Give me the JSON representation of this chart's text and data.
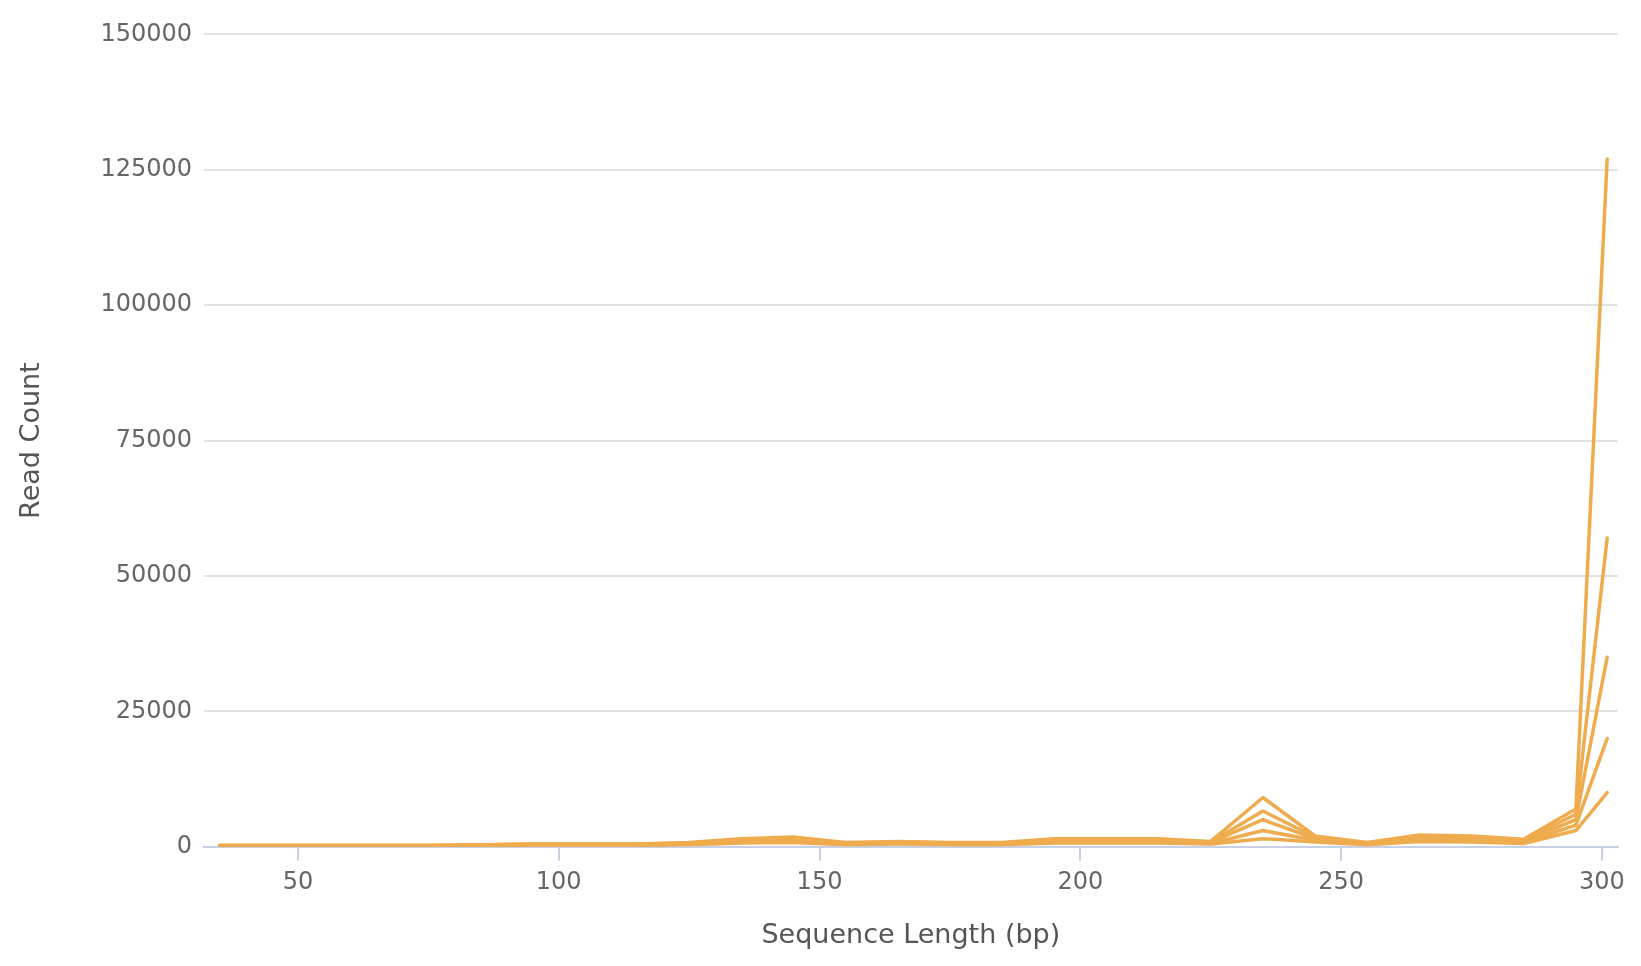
{
  "chart_data": {
    "type": "line",
    "xlabel": "Sequence Length (bp)",
    "ylabel": "Read Count",
    "x": [
      35,
      45,
      55,
      65,
      75,
      85,
      95,
      105,
      115,
      125,
      135,
      145,
      155,
      165,
      175,
      185,
      195,
      205,
      215,
      225,
      235,
      245,
      255,
      265,
      275,
      285,
      295,
      301
    ],
    "series": [
      {
        "color": "#efac4e",
        "values": [
          300,
          300,
          300,
          300,
          300,
          400,
          500,
          500,
          500,
          800,
          1500,
          1800,
          800,
          1000,
          800,
          800,
          1500,
          1500,
          1500,
          1000,
          9100,
          2000,
          800,
          2200,
          2000,
          1400,
          7000,
          127000
        ]
      },
      {
        "color": "#efac4e",
        "values": [
          250,
          250,
          250,
          250,
          250,
          350,
          450,
          450,
          450,
          700,
          1300,
          1600,
          700,
          900,
          700,
          700,
          1300,
          1300,
          1300,
          900,
          6600,
          1800,
          700,
          2000,
          1800,
          1200,
          6000,
          57000
        ]
      },
      {
        "color": "#efac4e",
        "values": [
          200,
          200,
          200,
          200,
          200,
          300,
          400,
          400,
          400,
          600,
          1100,
          1400,
          600,
          800,
          600,
          600,
          1100,
          1100,
          1100,
          800,
          5000,
          1500,
          600,
          1700,
          1500,
          1000,
          5000,
          35000
        ]
      },
      {
        "color": "#efac4e",
        "values": [
          150,
          150,
          150,
          150,
          150,
          250,
          300,
          300,
          300,
          500,
          900,
          1100,
          500,
          600,
          500,
          500,
          900,
          900,
          900,
          600,
          3000,
          1200,
          500,
          1400,
          1200,
          800,
          4000,
          20000
        ]
      },
      {
        "color": "#efac4e",
        "values": [
          100,
          100,
          100,
          100,
          100,
          200,
          200,
          200,
          200,
          400,
          700,
          800,
          400,
          500,
          400,
          400,
          700,
          700,
          700,
          500,
          1500,
          900,
          400,
          1000,
          900,
          600,
          3000,
          10000
        ]
      }
    ],
    "xlim": [
      32,
      303
    ],
    "xticks": [
      50,
      100,
      150,
      200,
      250,
      300
    ],
    "ylim": [
      0,
      150000
    ],
    "yticks": [
      0,
      25000,
      50000,
      75000,
      100000,
      125000,
      150000
    ],
    "grid": "y",
    "legend": false,
    "marker": "none",
    "line_style": "solid"
  }
}
